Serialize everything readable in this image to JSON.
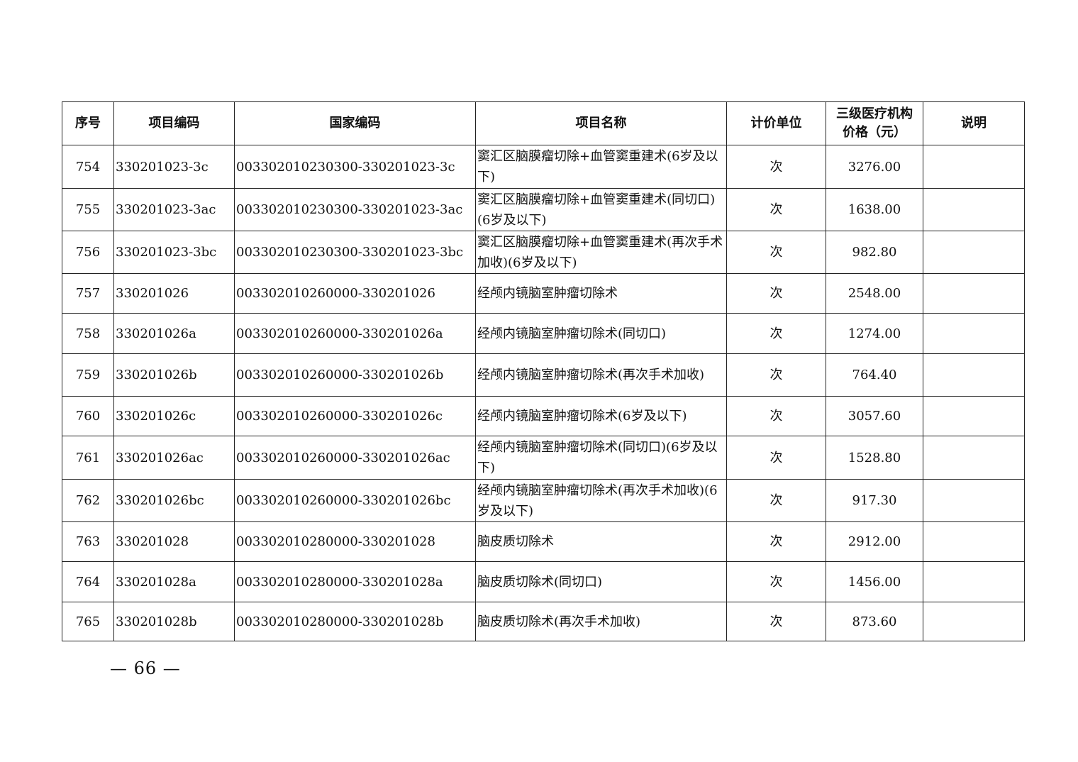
{
  "headers": [
    "序号",
    "项目编码",
    "国家编码",
    "项目名称",
    "计价单位",
    "三级医疗机构价格（元）",
    "说明"
  ],
  "header_price_line1": "三级医疗机构",
  "header_price_line2": "价格（元）",
  "rows": [
    {
      "no": "754",
      "code": "330201023-3c",
      "national": "003302010230300-330201023-3c",
      "name": "窦汇区脑膜瘤切除+血管窦重建术(6岁及以下)",
      "unit": "次",
      "price": "3276.00",
      "note": ""
    },
    {
      "no": "755",
      "code": "330201023-3ac",
      "national": "003302010230300-330201023-3ac",
      "name": "窦汇区脑膜瘤切除+血管窦重建术(同切口)(6岁及以下)",
      "unit": "次",
      "price": "1638.00",
      "note": ""
    },
    {
      "no": "756",
      "code": "330201023-3bc",
      "national": "003302010230300-330201023-3bc",
      "name": "窦汇区脑膜瘤切除+血管窦重建术(再次手术加收)(6岁及以下)",
      "unit": "次",
      "price": "982.80",
      "note": ""
    },
    {
      "no": "757",
      "code": "330201026",
      "national": "003302010260000-330201026",
      "name": "经颅内镜脑室肿瘤切除术",
      "unit": "次",
      "price": "2548.00",
      "note": ""
    },
    {
      "no": "758",
      "code": "330201026a",
      "national": "003302010260000-330201026a",
      "name": "经颅内镜脑室肿瘤切除术(同切口)",
      "unit": "次",
      "price": "1274.00",
      "note": ""
    },
    {
      "no": "759",
      "code": "330201026b",
      "national": "003302010260000-330201026b",
      "name": "经颅内镜脑室肿瘤切除术(再次手术加收)",
      "unit": "次",
      "price": "764.40",
      "note": ""
    },
    {
      "no": "760",
      "code": "330201026c",
      "national": "003302010260000-330201026c",
      "name": "经颅内镜脑室肿瘤切除术(6岁及以下)",
      "unit": "次",
      "price": "3057.60",
      "note": ""
    },
    {
      "no": "761",
      "code": "330201026ac",
      "national": "003302010260000-330201026ac",
      "name": "经颅内镜脑室肿瘤切除术(同切口)(6岁及以下)",
      "unit": "次",
      "price": "1528.80",
      "note": ""
    },
    {
      "no": "762",
      "code": "330201026bc",
      "national": "003302010260000-330201026bc",
      "name": "经颅内镜脑室肿瘤切除术(再次手术加收)(6岁及以下)",
      "unit": "次",
      "price": "917.30",
      "note": ""
    },
    {
      "no": "763",
      "code": "330201028",
      "national": "003302010280000-330201028",
      "name": "脑皮质切除术",
      "unit": "次",
      "price": "2912.00",
      "note": ""
    },
    {
      "no": "764",
      "code": "330201028a",
      "national": "003302010280000-330201028a",
      "name": "脑皮质切除术(同切口)",
      "unit": "次",
      "price": "1456.00",
      "note": ""
    },
    {
      "no": "765",
      "code": "330201028b",
      "national": "003302010280000-330201028b",
      "name": "脑皮质切除术(再次手术加收)",
      "unit": "次",
      "price": "873.60",
      "note": ""
    }
  ],
  "page_number": "— 66 —"
}
